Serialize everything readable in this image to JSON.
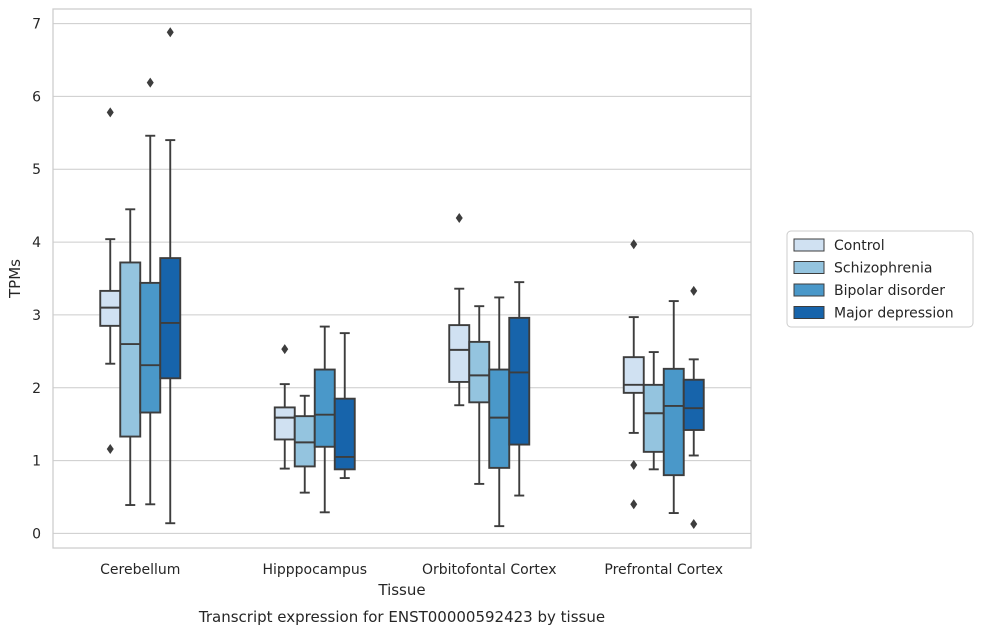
{
  "colors": {
    "Control": "#d0e1f2",
    "Schizophrenia": "#94c4df",
    "Bipolar disorder": "#4a98c9",
    "Major depression": "#1764ab",
    "box_line": "#3d3d3d",
    "grid": "#cccccc",
    "frame": "#cccccc"
  },
  "chart_data": {
    "type": "box",
    "title": "",
    "caption": "Transcript expression for ENST00000592423 by tissue",
    "xlabel": "Tissue",
    "ylabel": "TPMs",
    "ylim": [
      -0.2,
      7.2
    ],
    "yticks": [
      0,
      1,
      2,
      3,
      4,
      5,
      6,
      7
    ],
    "grid": true,
    "legend_position": "right",
    "categories": [
      "Cerebellum",
      "Hipppocampus",
      "Orbitofontal Cortex",
      "Prefrontal Cortex"
    ],
    "series": [
      {
        "name": "Control",
        "boxes": [
          {
            "q1": 2.85,
            "median": 3.1,
            "q3": 3.33,
            "whisker_low": 2.33,
            "whisker_high": 4.04,
            "outliers": [
              5.78,
              1.16
            ]
          },
          {
            "q1": 1.29,
            "median": 1.59,
            "q3": 1.73,
            "whisker_low": 0.89,
            "whisker_high": 2.05,
            "outliers": [
              2.53
            ]
          },
          {
            "q1": 2.08,
            "median": 2.52,
            "q3": 2.86,
            "whisker_low": 1.76,
            "whisker_high": 3.36,
            "outliers": [
              4.33
            ]
          },
          {
            "q1": 1.93,
            "median": 2.04,
            "q3": 2.42,
            "whisker_low": 1.38,
            "whisker_high": 2.97,
            "outliers": [
              3.97,
              0.94,
              0.4
            ]
          }
        ]
      },
      {
        "name": "Schizophrenia",
        "boxes": [
          {
            "q1": 1.33,
            "median": 2.6,
            "q3": 3.72,
            "whisker_low": 0.39,
            "whisker_high": 4.45,
            "outliers": []
          },
          {
            "q1": 0.92,
            "median": 1.25,
            "q3": 1.61,
            "whisker_low": 0.56,
            "whisker_high": 1.89,
            "outliers": []
          },
          {
            "q1": 1.8,
            "median": 2.17,
            "q3": 2.63,
            "whisker_low": 0.68,
            "whisker_high": 3.12,
            "outliers": []
          },
          {
            "q1": 1.12,
            "median": 1.65,
            "q3": 2.04,
            "whisker_low": 0.88,
            "whisker_high": 2.49,
            "outliers": []
          }
        ]
      },
      {
        "name": "Bipolar disorder",
        "boxes": [
          {
            "q1": 1.66,
            "median": 2.31,
            "q3": 3.44,
            "whisker_low": 0.4,
            "whisker_high": 5.46,
            "outliers": [
              6.19
            ]
          },
          {
            "q1": 1.19,
            "median": 1.63,
            "q3": 2.25,
            "whisker_low": 0.29,
            "whisker_high": 2.84,
            "outliers": []
          },
          {
            "q1": 0.9,
            "median": 1.59,
            "q3": 2.25,
            "whisker_low": 0.1,
            "whisker_high": 3.24,
            "outliers": []
          },
          {
            "q1": 0.8,
            "median": 1.75,
            "q3": 2.26,
            "whisker_low": 0.28,
            "whisker_high": 3.19,
            "outliers": []
          }
        ]
      },
      {
        "name": "Major depression",
        "boxes": [
          {
            "q1": 2.13,
            "median": 2.89,
            "q3": 3.78,
            "whisker_low": 0.14,
            "whisker_high": 5.4,
            "outliers": [
              6.88
            ]
          },
          {
            "q1": 0.88,
            "median": 1.05,
            "q3": 1.85,
            "whisker_low": 0.76,
            "whisker_high": 2.75,
            "outliers": []
          },
          {
            "q1": 1.22,
            "median": 2.21,
            "q3": 2.96,
            "whisker_low": 0.52,
            "whisker_high": 3.45,
            "outliers": []
          },
          {
            "q1": 1.42,
            "median": 1.72,
            "q3": 2.11,
            "whisker_low": 1.07,
            "whisker_high": 2.39,
            "outliers": [
              3.33,
              0.13
            ]
          }
        ]
      }
    ]
  }
}
